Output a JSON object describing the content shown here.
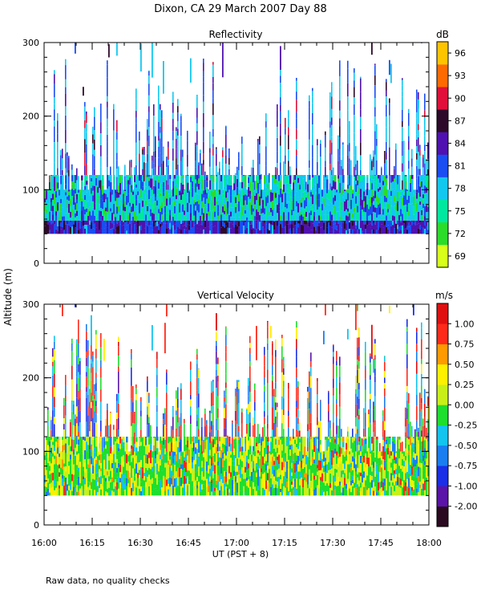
{
  "figure": {
    "title": "Dixon, CA 29 March 2007  Day  88",
    "ylabel": "Altitude (m)",
    "xlabel": "UT  (PST + 8)",
    "footnote": "Raw data, no quality checks"
  },
  "chart_data": [
    {
      "type": "heatmap",
      "title": "Reflectivity",
      "x_ticks": [
        "16:00",
        "16:15",
        "16:30",
        "16:45",
        "17:00",
        "17:15",
        "17:30",
        "17:45",
        "18:00"
      ],
      "xlim": [
        "16:00",
        "18:00"
      ],
      "y_ticks": [
        0,
        100,
        200,
        300
      ],
      "ylim": [
        0,
        300
      ],
      "colorbar": {
        "unit": "dB",
        "ticks": [
          "69",
          "72",
          "75",
          "78",
          "81",
          "84",
          "87",
          "90",
          "93",
          "96"
        ],
        "colors": [
          "#d8ff1a",
          "#2bdc2b",
          "#00e8a0",
          "#12c8ef",
          "#1a4df2",
          "#4f12b0",
          "#2e0a2a",
          "#e0103a",
          "#ff6a00",
          "#ffc400"
        ]
      }
    },
    {
      "type": "heatmap",
      "title": "Vertical Velocity",
      "x_ticks": [
        "16:00",
        "16:15",
        "16:30",
        "16:45",
        "17:00",
        "17:15",
        "17:30",
        "17:45",
        "18:00"
      ],
      "xlim": [
        "16:00",
        "18:00"
      ],
      "y_ticks": [
        0,
        100,
        200,
        300
      ],
      "ylim": [
        0,
        300
      ],
      "colorbar": {
        "unit": "m/s",
        "ticks": [
          "-2.00",
          "-1.00",
          "-0.75",
          "-0.50",
          "-0.25",
          "0.00",
          "0.25",
          "0.50",
          "0.75",
          "1.00"
        ],
        "colors": [
          "#2a0a20",
          "#5a14a8",
          "#1a2fe6",
          "#1a7ef0",
          "#12c4ee",
          "#1ede2e",
          "#c8f018",
          "#fff000",
          "#ff9a00",
          "#ff2a1a",
          "#e01010"
        ]
      }
    }
  ]
}
